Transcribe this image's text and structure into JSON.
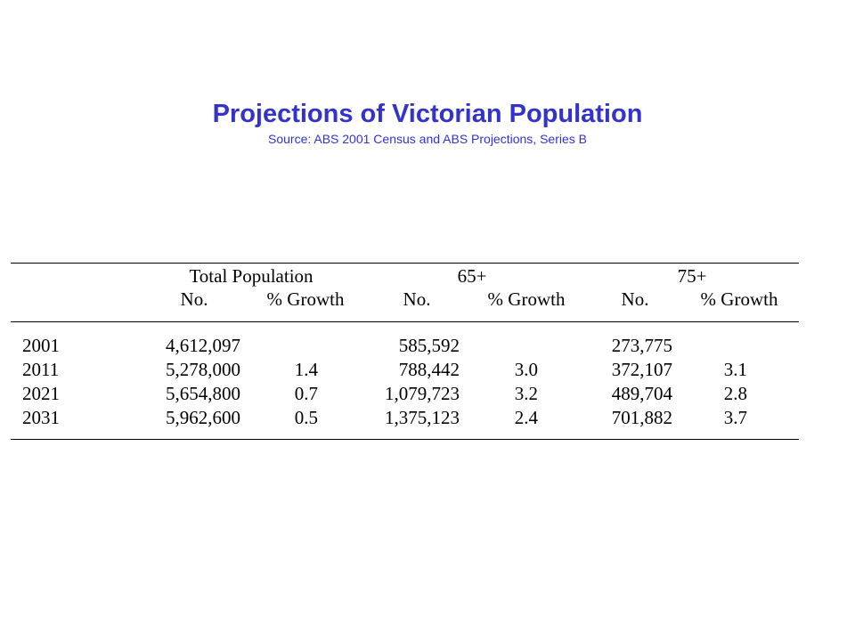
{
  "title": "Projections of Victorian Population",
  "subtitle": "Source: ABS 2001 Census and ABS Projections, Series B",
  "table": {
    "groups": [
      "Total Population",
      "65+",
      "75+"
    ],
    "subheaders": [
      "No.",
      "% Growth",
      "No.",
      "% Growth",
      "No.",
      "% Growth"
    ],
    "rows": [
      {
        "year": "2001",
        "cells": [
          "4,612,097",
          "",
          "585,592",
          "",
          "273,775",
          ""
        ]
      },
      {
        "year": "2011",
        "cells": [
          "5,278,000",
          "1.4",
          "788,442",
          "3.0",
          "372,107",
          "3.1"
        ]
      },
      {
        "year": "2021",
        "cells": [
          "5,654,800",
          "0.7",
          "1,079,723",
          "3.2",
          "489,704",
          "2.8"
        ]
      },
      {
        "year": "2031",
        "cells": [
          "5,962,600",
          "0.5",
          "1,375,123",
          "2.4",
          "701,882",
          "3.7"
        ]
      }
    ]
  }
}
